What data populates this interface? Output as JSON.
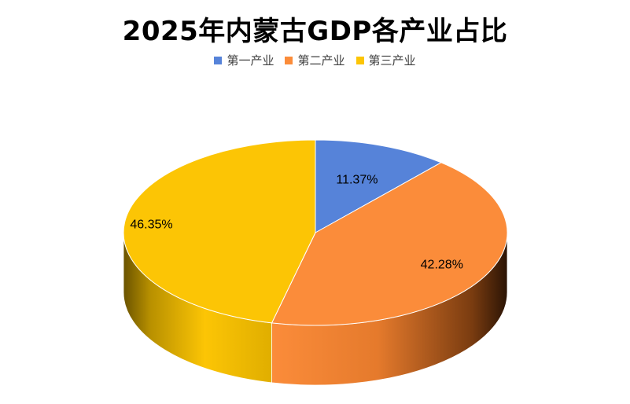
{
  "chart_data": {
    "type": "pie",
    "title": "2025年内蒙古GDP各产业占比",
    "legend_position": "top",
    "categories": [
      "第一产业",
      "第二产业",
      "第三产业"
    ],
    "values": [
      11.37,
      42.28,
      46.35
    ],
    "labels": [
      "11.37%",
      "42.28%",
      "46.35%"
    ],
    "colors": [
      "#5683d9",
      "#fb8c3a",
      "#fcc505"
    ]
  }
}
